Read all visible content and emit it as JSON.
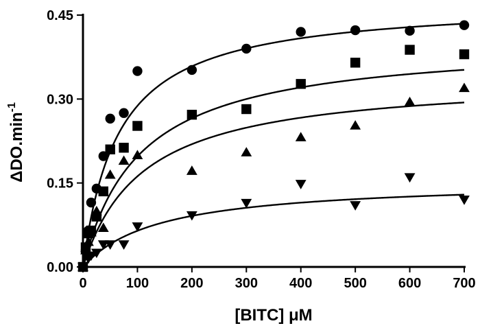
{
  "chart_data": {
    "type": "scatter",
    "xlabel": "[BITC] μM",
    "ylabel": {
      "prefix": "ΔDO.min",
      "superscript": "-1"
    },
    "xlim": [
      0,
      700
    ],
    "ylim": [
      0,
      0.45
    ],
    "xticks": [
      0,
      100,
      200,
      300,
      400,
      500,
      600,
      700
    ],
    "yticks": [
      0.0,
      0.15,
      0.3,
      0.45
    ],
    "ytick_labels": [
      "0.00",
      "0.15",
      "0.30",
      "0.45"
    ],
    "grid": false,
    "legend": "none",
    "series": [
      {
        "marker": "circle",
        "fit": {
          "model": "michaelis-menten",
          "vmax": 0.475,
          "km": 65
        },
        "points": [
          {
            "x": 0,
            "y": 0.0
          },
          {
            "x": 5,
            "y": 0.03
          },
          {
            "x": 10,
            "y": 0.065
          },
          {
            "x": 15,
            "y": 0.115
          },
          {
            "x": 25,
            "y": 0.14
          },
          {
            "x": 37.5,
            "y": 0.198
          },
          {
            "x": 50,
            "y": 0.265
          },
          {
            "x": 75,
            "y": 0.275
          },
          {
            "x": 100,
            "y": 0.35
          },
          {
            "x": 200,
            "y": 0.352
          },
          {
            "x": 300,
            "y": 0.39
          },
          {
            "x": 400,
            "y": 0.42
          },
          {
            "x": 500,
            "y": 0.423
          },
          {
            "x": 600,
            "y": 0.422
          },
          {
            "x": 700,
            "y": 0.432
          }
        ]
      },
      {
        "marker": "square",
        "fit": {
          "model": "michaelis-menten",
          "vmax": 0.405,
          "km": 105
        },
        "points": [
          {
            "x": 0,
            "y": 0.0
          },
          {
            "x": 5,
            "y": 0.035
          },
          {
            "x": 10,
            "y": 0.06
          },
          {
            "x": 15,
            "y": 0.065
          },
          {
            "x": 25,
            "y": 0.09
          },
          {
            "x": 37.5,
            "y": 0.135
          },
          {
            "x": 50,
            "y": 0.21
          },
          {
            "x": 75,
            "y": 0.213
          },
          {
            "x": 100,
            "y": 0.252
          },
          {
            "x": 200,
            "y": 0.272
          },
          {
            "x": 300,
            "y": 0.282
          },
          {
            "x": 400,
            "y": 0.327
          },
          {
            "x": 500,
            "y": 0.365
          },
          {
            "x": 600,
            "y": 0.388
          },
          {
            "x": 700,
            "y": 0.38
          }
        ]
      },
      {
        "marker": "triangle-up",
        "fit": {
          "model": "michaelis-menten",
          "vmax": 0.34,
          "km": 110
        },
        "points": [
          {
            "x": 0,
            "y": 0.0
          },
          {
            "x": 5,
            "y": 0.03
          },
          {
            "x": 10,
            "y": 0.045
          },
          {
            "x": 15,
            "y": 0.062
          },
          {
            "x": 25,
            "y": 0.1
          },
          {
            "x": 37.5,
            "y": 0.07
          },
          {
            "x": 50,
            "y": 0.165
          },
          {
            "x": 75,
            "y": 0.19
          },
          {
            "x": 100,
            "y": 0.2
          },
          {
            "x": 200,
            "y": 0.172
          },
          {
            "x": 300,
            "y": 0.205
          },
          {
            "x": 400,
            "y": 0.232
          },
          {
            "x": 500,
            "y": 0.253
          },
          {
            "x": 600,
            "y": 0.295
          },
          {
            "x": 700,
            "y": 0.32
          }
        ]
      },
      {
        "marker": "triangle-down",
        "fit": {
          "model": "michaelis-menten",
          "vmax": 0.155,
          "km": 140
        },
        "points": [
          {
            "x": 0,
            "y": 0.0
          },
          {
            "x": 5,
            "y": 0.02
          },
          {
            "x": 10,
            "y": 0.015
          },
          {
            "x": 15,
            "y": 0.02
          },
          {
            "x": 25,
            "y": 0.025
          },
          {
            "x": 37.5,
            "y": 0.04
          },
          {
            "x": 50,
            "y": 0.04
          },
          {
            "x": 75,
            "y": 0.04
          },
          {
            "x": 100,
            "y": 0.072
          },
          {
            "x": 200,
            "y": 0.092
          },
          {
            "x": 300,
            "y": 0.114
          },
          {
            "x": 400,
            "y": 0.148
          },
          {
            "x": 500,
            "y": 0.11
          },
          {
            "x": 600,
            "y": 0.16
          },
          {
            "x": 700,
            "y": 0.12
          }
        ]
      }
    ],
    "colors": {
      "foreground": "#000000",
      "background": "#ffffff"
    }
  }
}
